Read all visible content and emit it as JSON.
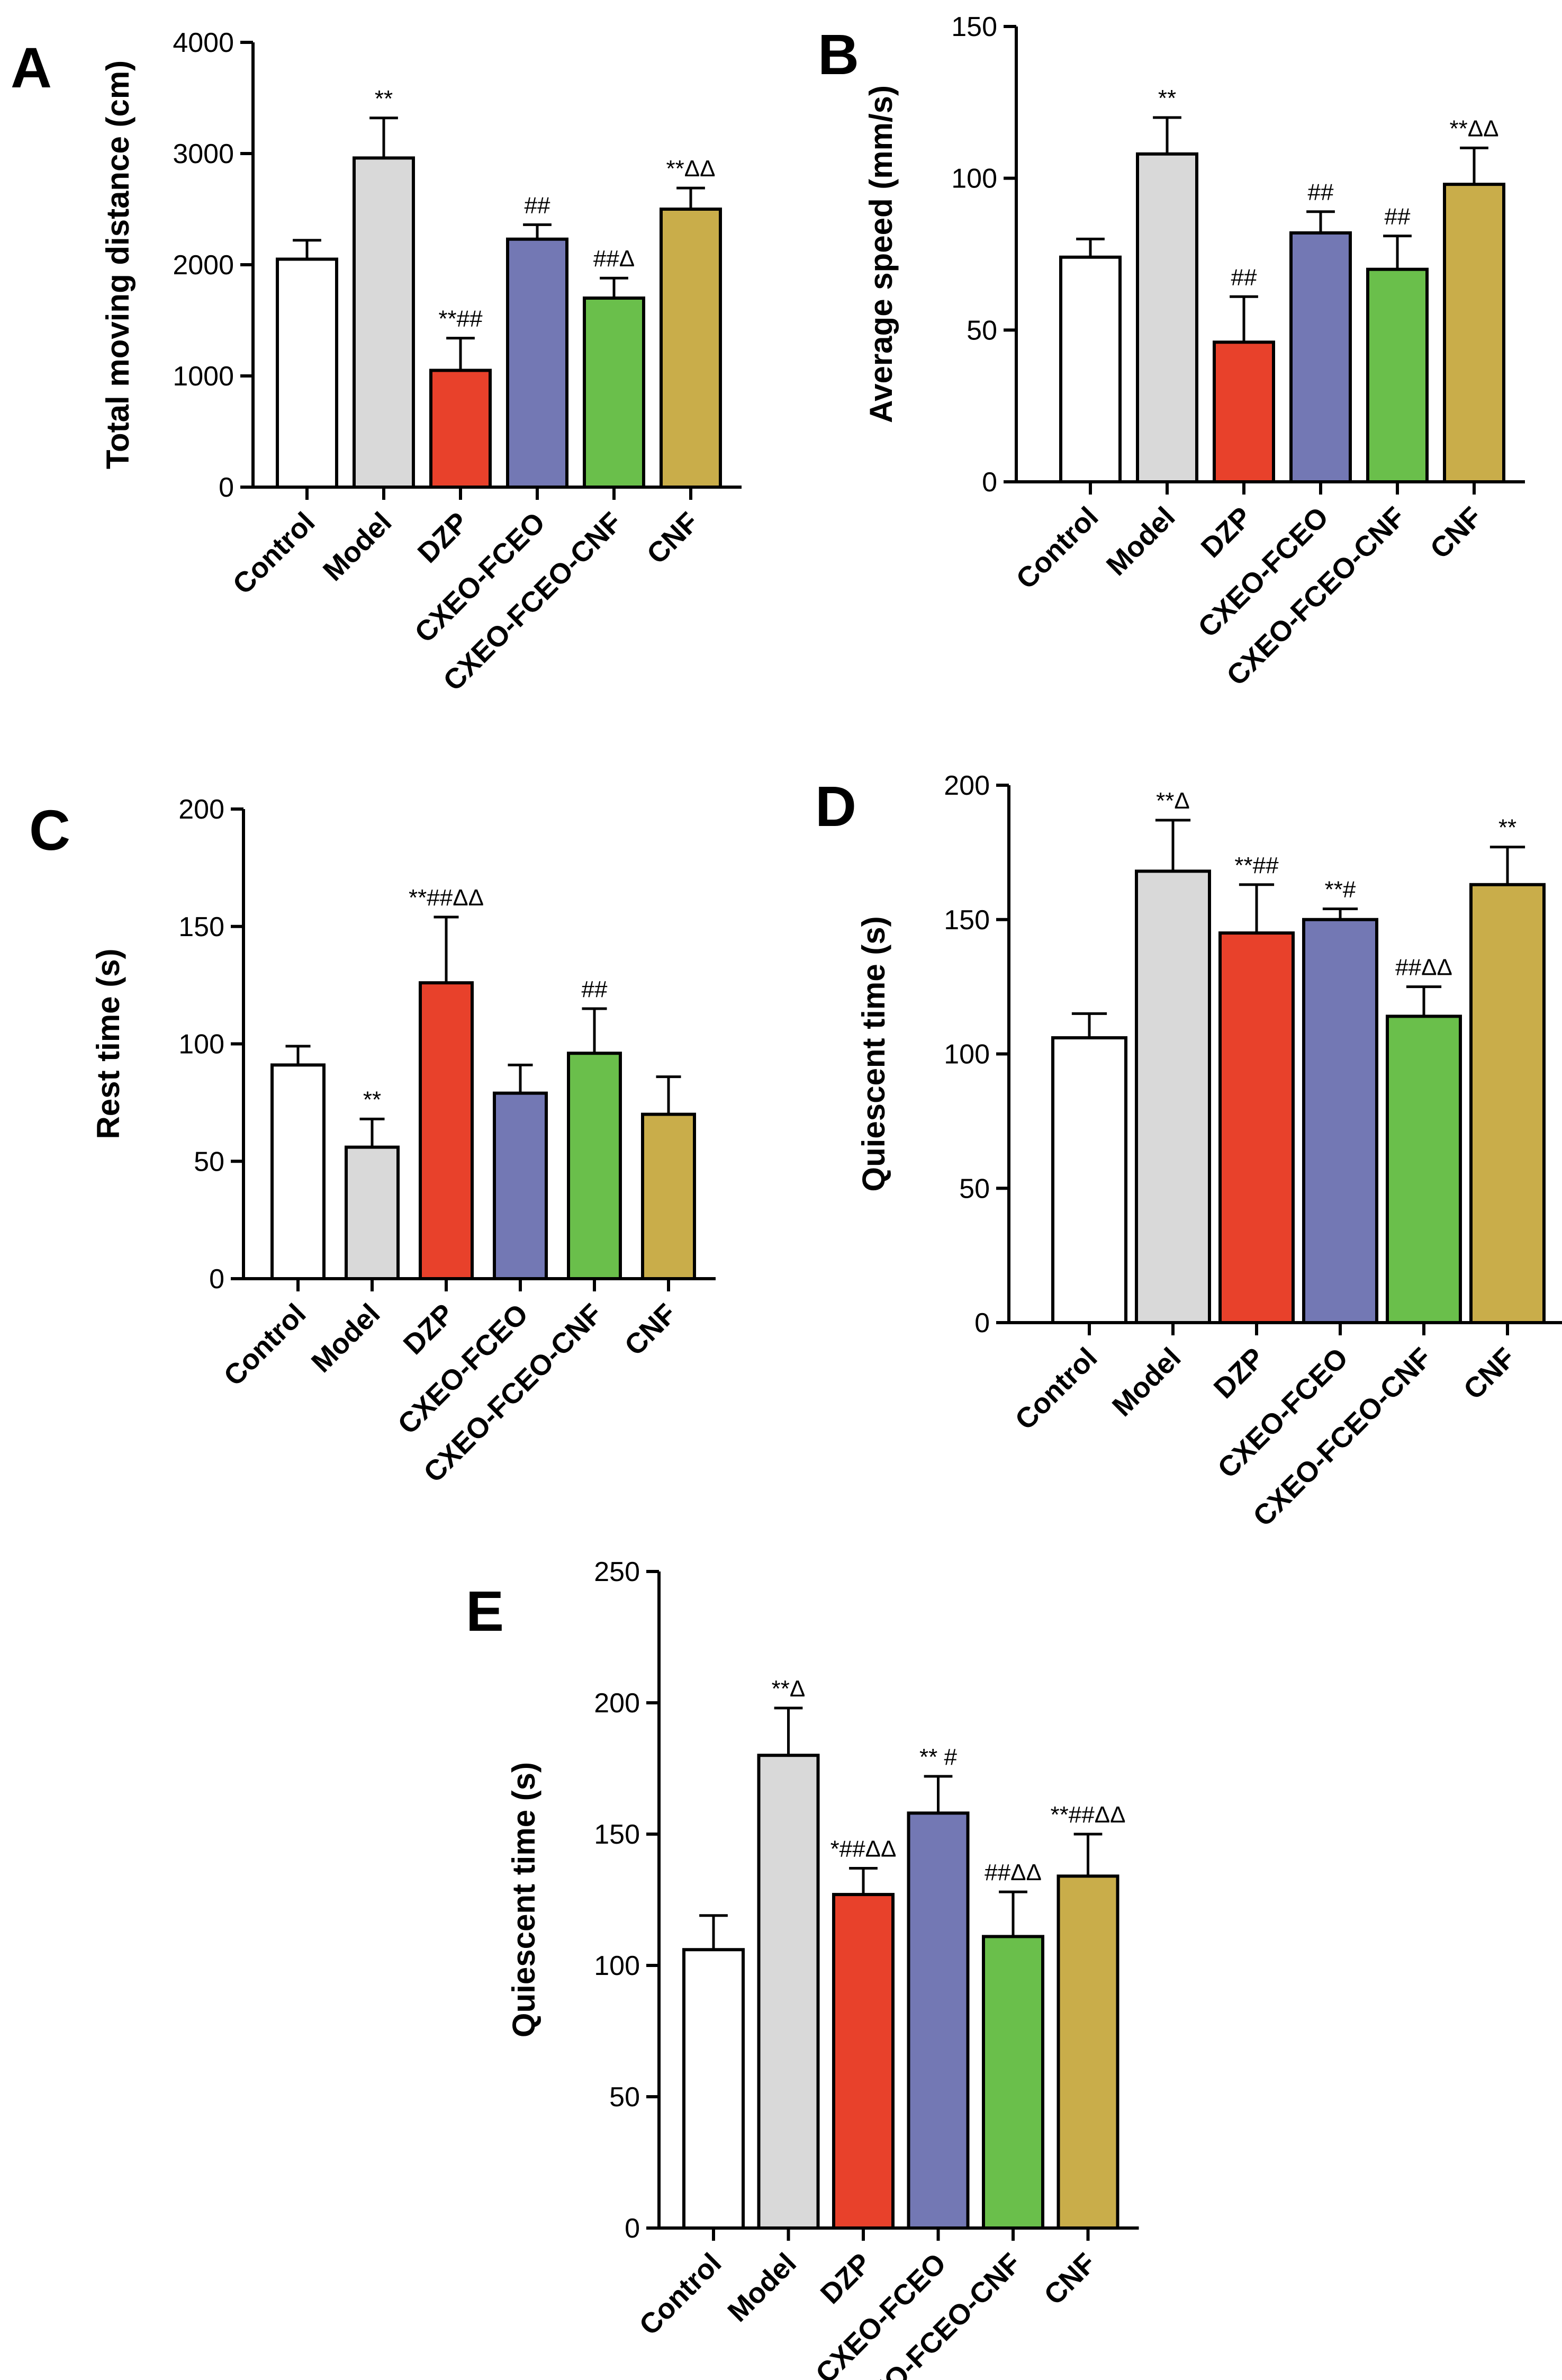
{
  "chart_data": [
    {
      "type": "bar",
      "panel": "A",
      "title": "",
      "xlabel": "",
      "ylabel": "Total moving distance (cm)",
      "ylim": [
        0,
        4000
      ],
      "yticks": [
        0,
        1000,
        2000,
        3000,
        4000
      ],
      "categories": [
        "Control",
        "Model",
        "DZP",
        "CXEO-FCEO",
        "CXEO-FCEO-CNF",
        "CNF"
      ],
      "values": [
        2050,
        2960,
        1050,
        2230,
        1700,
        2500
      ],
      "errors": [
        170,
        360,
        290,
        130,
        180,
        190
      ],
      "colors": [
        "#ffffff",
        "#d9d9d9",
        "#e8412b",
        "#7378b4",
        "#6abf4b",
        "#c9ad4a"
      ],
      "annotations": [
        "",
        "**",
        "**##",
        "##",
        "##Δ",
        "**ΔΔ"
      ],
      "grid": false
    },
    {
      "type": "bar",
      "panel": "B",
      "title": "",
      "xlabel": "",
      "ylabel": "Average speed (mm/s)",
      "ylim": [
        0,
        150
      ],
      "yticks": [
        0,
        50,
        100,
        150
      ],
      "categories": [
        "Control",
        "Model",
        "DZP",
        "CXEO-FCEO",
        "CXEO-FCEO-CNF",
        "CNF"
      ],
      "values": [
        74,
        108,
        46,
        82,
        70,
        98
      ],
      "errors": [
        6,
        12,
        15,
        7,
        11,
        12
      ],
      "colors": [
        "#ffffff",
        "#d9d9d9",
        "#e8412b",
        "#7378b4",
        "#6abf4b",
        "#c9ad4a"
      ],
      "annotations": [
        "",
        "**",
        "##",
        "##",
        "##",
        "**ΔΔ"
      ],
      "grid": false
    },
    {
      "type": "bar",
      "panel": "C",
      "title": "",
      "xlabel": "",
      "ylabel": "Rest time (s)",
      "ylim": [
        0,
        200
      ],
      "yticks": [
        0,
        50,
        100,
        150,
        200
      ],
      "categories": [
        "Control",
        "Model",
        "DZP",
        "CXEO-FCEO",
        "CXEO-FCEO-CNF",
        "CNF"
      ],
      "values": [
        91,
        56,
        126,
        79,
        96,
        70
      ],
      "errors": [
        8,
        12,
        28,
        12,
        19,
        16
      ],
      "colors": [
        "#ffffff",
        "#d9d9d9",
        "#e8412b",
        "#7378b4",
        "#6abf4b",
        "#c9ad4a"
      ],
      "annotations": [
        "",
        "**",
        "**##ΔΔ",
        "",
        "##",
        ""
      ],
      "grid": false
    },
    {
      "type": "bar",
      "panel": "D",
      "title": "",
      "xlabel": "",
      "ylabel": "Quiescent time (s)",
      "ylim": [
        0,
        200
      ],
      "yticks": [
        0,
        50,
        100,
        150,
        200
      ],
      "categories": [
        "Control",
        "Model",
        "DZP",
        "CXEO-FCEO",
        "CXEO-FCEO-CNF",
        "CNF"
      ],
      "values": [
        106,
        168,
        145,
        150,
        114,
        163
      ],
      "errors": [
        9,
        19,
        18,
        4,
        11,
        14
      ],
      "colors": [
        "#ffffff",
        "#d9d9d9",
        "#e8412b",
        "#7378b4",
        "#6abf4b",
        "#c9ad4a"
      ],
      "annotations": [
        "",
        "**Δ",
        "**##",
        "**#",
        "##ΔΔ",
        "**"
      ],
      "grid": false
    },
    {
      "type": "bar",
      "panel": "E",
      "title": "",
      "xlabel": "",
      "ylabel": "Quiescent time (s)",
      "ylim": [
        0,
        250
      ],
      "yticks": [
        0,
        50,
        100,
        150,
        200,
        250
      ],
      "categories": [
        "Control",
        "Model",
        "DZP",
        "CXEO-FCEO",
        "CXEO-FCEO-CNF",
        "CNF"
      ],
      "values": [
        106,
        180,
        127,
        158,
        111,
        134
      ],
      "errors": [
        13,
        18,
        10,
        14,
        17,
        16
      ],
      "colors": [
        "#ffffff",
        "#d9d9d9",
        "#e8412b",
        "#7378b4",
        "#6abf4b",
        "#c9ad4a"
      ],
      "annotations": [
        "",
        "**Δ",
        "*##ΔΔ",
        "** #",
        "##ΔΔ",
        "**##ΔΔ"
      ],
      "grid": false
    }
  ]
}
